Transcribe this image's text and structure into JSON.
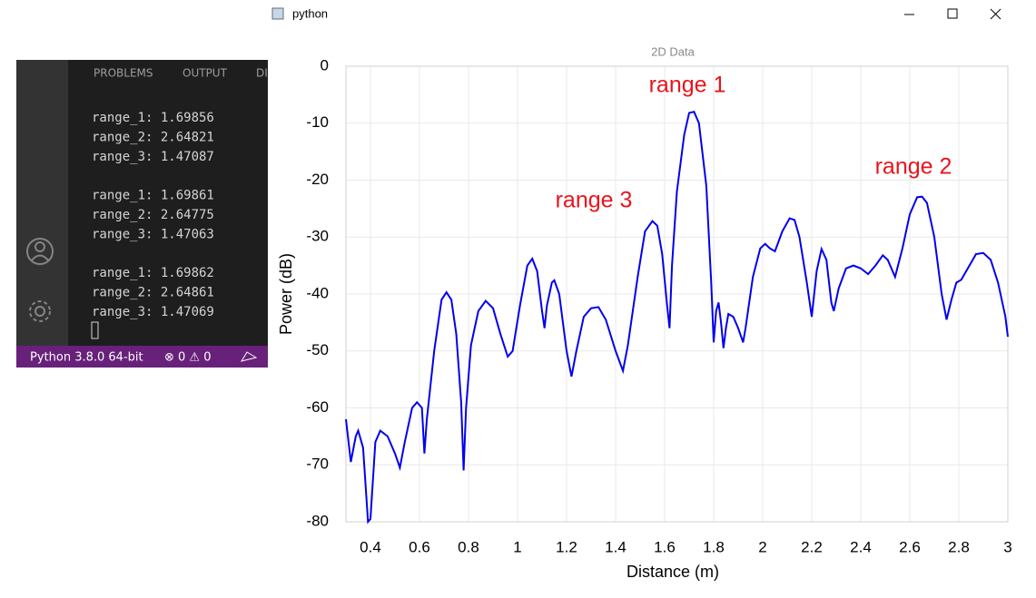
{
  "window": {
    "title": "python"
  },
  "terminal": {
    "tabs": [
      "PROBLEMS",
      "OUTPUT",
      "DI"
    ],
    "groups": [
      [
        "range_1: 1.69856",
        "range_2: 2.64821",
        "range_3: 1.47087"
      ],
      [
        "range_1: 1.69861",
        "range_2: 2.64775",
        "range_3: 1.47063"
      ],
      [
        "range_1: 1.69862",
        "range_2: 2.64861",
        "range_3: 1.47069"
      ]
    ]
  },
  "status_bar": {
    "python": "Python 3.8.0 64-bit",
    "problems": "⊗ 0 ⚠ 0"
  },
  "chart_data": {
    "type": "line",
    "title": "2D Data",
    "x_label": "Distance (m)",
    "y_label": "Power (dB)",
    "color": "#0000ee",
    "grid": true,
    "xlim": [
      0.3,
      3
    ],
    "ylim": [
      -80,
      0
    ],
    "xticks": [
      0.4,
      0.6,
      0.8,
      1,
      1.2,
      1.4,
      1.6,
      1.8,
      2,
      2.2,
      2.4,
      2.6,
      2.8,
      3
    ],
    "yticks": [
      -80,
      -70,
      -60,
      -50,
      -40,
      -30,
      -20,
      -10,
      0
    ],
    "annotations": [
      "range 1",
      "range 2",
      "range 3"
    ],
    "x": [
      0.3,
      0.32,
      0.34,
      0.35,
      0.37,
      0.39,
      0.4,
      0.42,
      0.44,
      0.47,
      0.5,
      0.52,
      0.54,
      0.57,
      0.59,
      0.61,
      0.62,
      0.63,
      0.66,
      0.69,
      0.71,
      0.73,
      0.75,
      0.77,
      0.78,
      0.79,
      0.81,
      0.84,
      0.87,
      0.9,
      0.93,
      0.96,
      0.98,
      1.01,
      1.04,
      1.06,
      1.08,
      1.1,
      1.11,
      1.12,
      1.14,
      1.15,
      1.17,
      1.2,
      1.22,
      1.24,
      1.27,
      1.3,
      1.33,
      1.36,
      1.4,
      1.43,
      1.45,
      1.49,
      1.52,
      1.55,
      1.57,
      1.59,
      1.61,
      1.62,
      1.63,
      1.65,
      1.68,
      1.7,
      1.72,
      1.74,
      1.77,
      1.79,
      1.8,
      1.81,
      1.82,
      1.83,
      1.84,
      1.85,
      1.86,
      1.88,
      1.9,
      1.92,
      1.93,
      1.96,
      1.99,
      2.01,
      2.03,
      2.05,
      2.08,
      2.11,
      2.13,
      2.15,
      2.18,
      2.2,
      2.22,
      2.24,
      2.26,
      2.28,
      2.29,
      2.31,
      2.34,
      2.37,
      2.4,
      2.43,
      2.46,
      2.49,
      2.51,
      2.54,
      2.57,
      2.6,
      2.63,
      2.65,
      2.67,
      2.7,
      2.73,
      2.75,
      2.77,
      2.79,
      2.81,
      2.83,
      2.87,
      2.9,
      2.93,
      2.96,
      2.99,
      3.0
    ],
    "values": [
      -62,
      -69.5,
      -65,
      -64,
      -67,
      -80,
      -79.5,
      -66,
      -64,
      -65,
      -68,
      -70.5,
      -66,
      -60,
      -59,
      -60,
      -68,
      -62,
      -50,
      -41,
      -39.7,
      -41,
      -47,
      -59,
      -71,
      -60,
      -49,
      -43,
      -41.2,
      -42.5,
      -47,
      -51,
      -50,
      -42,
      -35,
      -33.8,
      -36,
      -43,
      -46,
      -42,
      -38,
      -37.6,
      -40,
      -50,
      -54.5,
      -50,
      -44,
      -42.5,
      -42.3,
      -44.5,
      -50,
      -53.5,
      -49,
      -37,
      -29,
      -27.2,
      -28,
      -33,
      -42,
      -46,
      -35,
      -22,
      -12,
      -8.2,
      -8,
      -10,
      -21,
      -38,
      -48.5,
      -43,
      -41.5,
      -45,
      -49.5,
      -46,
      -43.5,
      -44,
      -46,
      -48.5,
      -46,
      -37,
      -32,
      -31.2,
      -32,
      -32.5,
      -29,
      -26.7,
      -27,
      -30,
      -38,
      -44,
      -36,
      -32.1,
      -34,
      -41.5,
      -43,
      -39,
      -35.5,
      -35,
      -35.5,
      -36.5,
      -35,
      -33.2,
      -34,
      -37,
      -32,
      -26,
      -23,
      -22.9,
      -24,
      -30,
      -40,
      -44.5,
      -41,
      -38,
      -37.5,
      -36,
      -33,
      -32.8,
      -34,
      -38,
      -44,
      -47.5
    ]
  }
}
